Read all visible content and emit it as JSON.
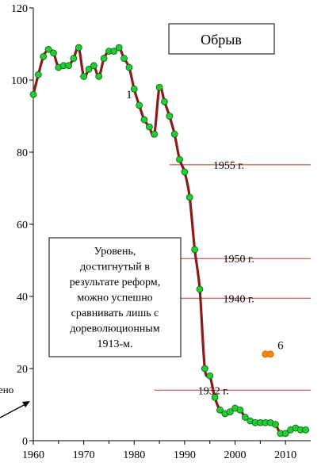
{
  "chart_data": {
    "type": "line",
    "title": "Обрыв",
    "xlabel": "",
    "ylabel": "",
    "xlim": [
      1960,
      2015
    ],
    "ylim": [
      0,
      120
    ],
    "xticks": [
      1960,
      1970,
      1980,
      1990,
      2000,
      2010
    ],
    "yticks": [
      0,
      20,
      40,
      60,
      80,
      100,
      120
    ],
    "grid": false,
    "series": [
      {
        "color": "#8b1a1a",
        "marker_color": "#22cc33",
        "x": [
          1960,
          1961,
          1962,
          1963,
          1964,
          1965,
          1966,
          1967,
          1968,
          1969,
          1970,
          1971,
          1972,
          1973,
          1974,
          1975,
          1976,
          1977,
          1978,
          1979,
          1980,
          1981,
          1982,
          1983,
          1984,
          1985,
          1986,
          1987,
          1988,
          1989,
          1990,
          1991,
          1992,
          1993,
          1994,
          1995,
          1996,
          1997,
          1998,
          1999,
          2000,
          2001,
          2002,
          2003,
          2004,
          2005,
          2006,
          2007,
          2008,
          2009,
          2010,
          2011,
          2012,
          2013,
          2014
        ],
        "y": [
          96,
          101.5,
          106.5,
          108.5,
          107.5,
          103.5,
          104,
          104,
          106,
          109,
          101,
          103,
          104,
          101,
          106,
          108,
          108,
          109,
          106,
          103.5,
          97.5,
          93,
          89,
          87,
          85,
          98,
          94,
          90,
          85,
          78,
          74.5,
          67.5,
          53,
          42,
          20,
          18,
          12,
          8.5,
          7.5,
          8,
          9,
          8.5,
          6.5,
          5.5,
          5,
          5,
          5,
          5,
          4.5,
          2,
          2,
          3,
          3.5,
          3,
          3
        ]
      },
      {
        "color": "#ff8800",
        "x": [
          2006,
          2007
        ],
        "y": [
          24,
          24
        ]
      }
    ],
    "reference_lines": [
      {
        "label": "1955 г.",
        "y": 76.5,
        "x_start": 1987
      },
      {
        "label": "1950 г.",
        "y": 50.5,
        "x_start": 1989
      },
      {
        "label": "1940 г.",
        "y": 39.5,
        "x_start": 1989
      },
      {
        "label": "1932 г.",
        "y": 14,
        "x_start": 1984
      }
    ],
    "annotations": [
      {
        "text": "1",
        "x": 1979,
        "y": 96
      },
      {
        "text": "6",
        "x": 2009,
        "y": 26.5
      }
    ],
    "text_box": "Уровень, достигнутый в результате реформ, можно успешно сравнивать лишь с дореволюционным 1913-м.",
    "text_box_lines": [
      "Уровень,",
      "достигнутый в",
      "результате реформ,",
      "можно успешно",
      "сравнивать лишь с",
      "дореволюционным",
      "1913-м."
    ],
    "left_edge_text": "ено"
  }
}
